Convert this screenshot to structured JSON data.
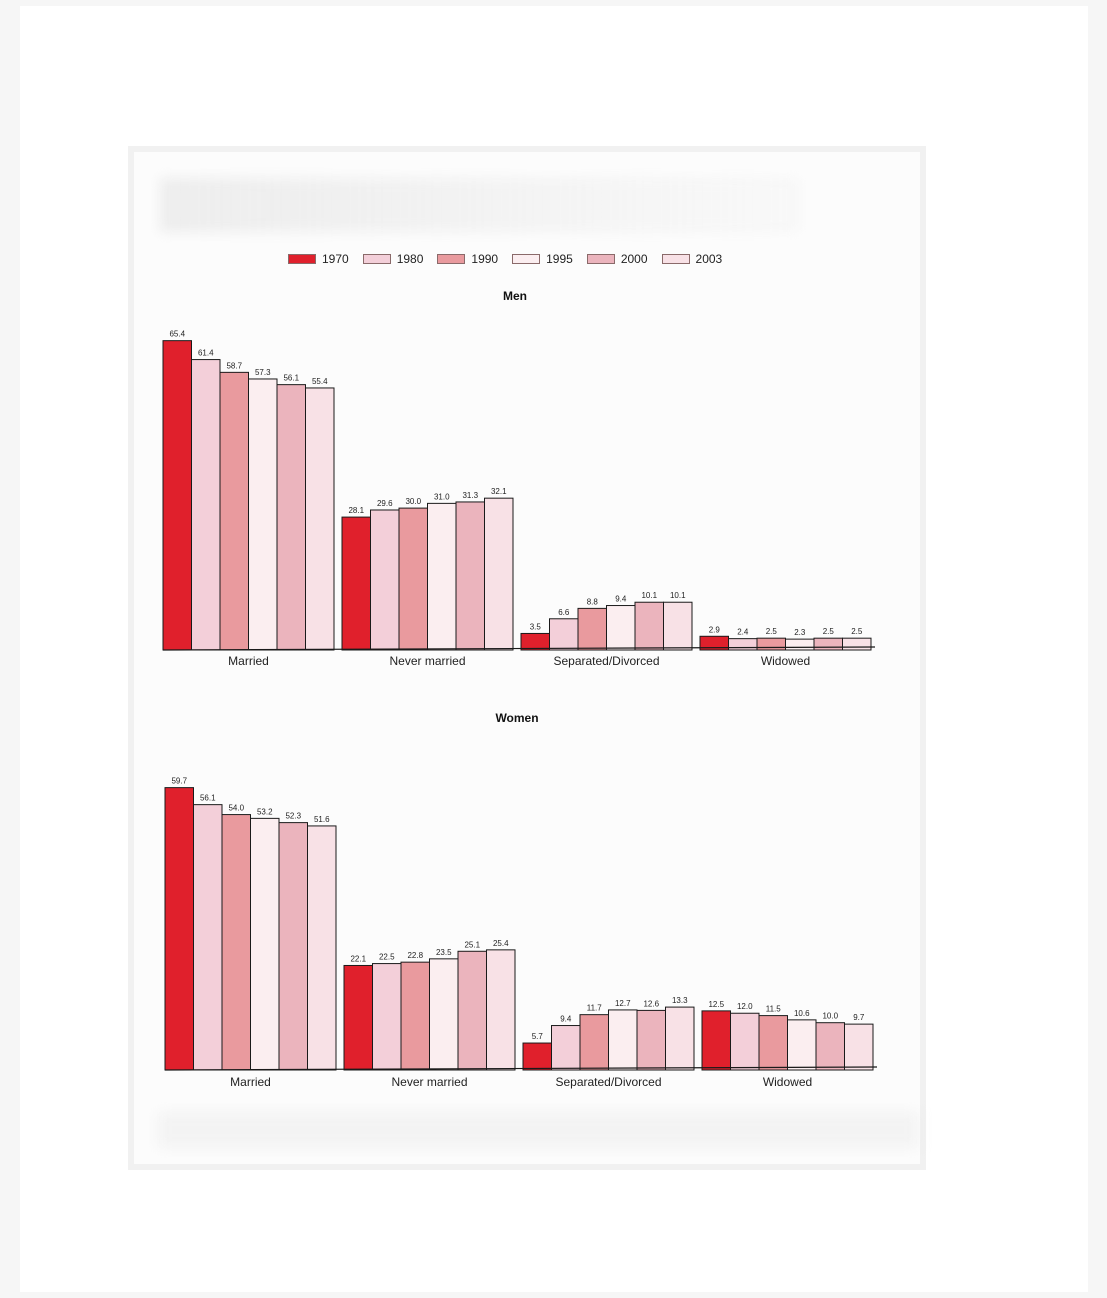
{
  "chart_data": {
    "type": "bar",
    "legend_position": "top",
    "series_names": [
      "1970",
      "1980",
      "1990",
      "1995",
      "2000",
      "2003"
    ],
    "series_colors": [
      "#e0202c",
      "#f3cfd9",
      "#e99a9e",
      "#fbeef0",
      "#ebb4bd",
      "#f8e1e6"
    ],
    "categories": [
      "Married",
      "Never married",
      "Separated/Divorced",
      "Widowed"
    ],
    "panels": [
      {
        "title": "Men",
        "values": [
          [
            65.4,
            61.4,
            58.7,
            57.3,
            56.1,
            55.4
          ],
          [
            28.1,
            29.6,
            30.0,
            31.0,
            31.3,
            32.1
          ],
          [
            3.5,
            6.6,
            8.8,
            9.4,
            10.1,
            10.1
          ],
          [
            2.9,
            2.4,
            2.5,
            2.3,
            2.5,
            2.5
          ]
        ],
        "value_labels": [
          [
            "65.4",
            "61.4",
            "58.7",
            "57.3",
            "56.1",
            "55.4"
          ],
          [
            "28.1",
            "29.6",
            "30.0",
            "31.0",
            "31.3",
            "32.1"
          ],
          [
            "3.5",
            "6.6",
            "8.8",
            "9.4",
            "10.1",
            "10.1"
          ],
          [
            "2.9",
            "2.4",
            "2.5",
            "2.3",
            "2.5",
            "2.5"
          ]
        ]
      },
      {
        "title": "Women",
        "values": [
          [
            59.7,
            56.1,
            54.0,
            53.2,
            52.3,
            51.6
          ],
          [
            22.1,
            22.5,
            22.8,
            23.5,
            25.1,
            25.4
          ],
          [
            5.7,
            9.4,
            11.7,
            12.7,
            12.6,
            13.3
          ],
          [
            12.5,
            12.0,
            11.5,
            10.6,
            10.0,
            9.7
          ]
        ],
        "value_labels": [
          [
            "59.7",
            "56.1",
            "54.0",
            "53.2",
            "52.3",
            "51.6"
          ],
          [
            "22.1",
            "22.5",
            "22.8",
            "23.5",
            "25.1",
            "25.4"
          ],
          [
            "5.7",
            "9.4",
            "11.7",
            "12.7",
            "12.6",
            "13.3"
          ],
          [
            "12.5",
            "12.0",
            "11.5",
            "10.6",
            "10.0",
            "9.7"
          ]
        ]
      }
    ]
  }
}
